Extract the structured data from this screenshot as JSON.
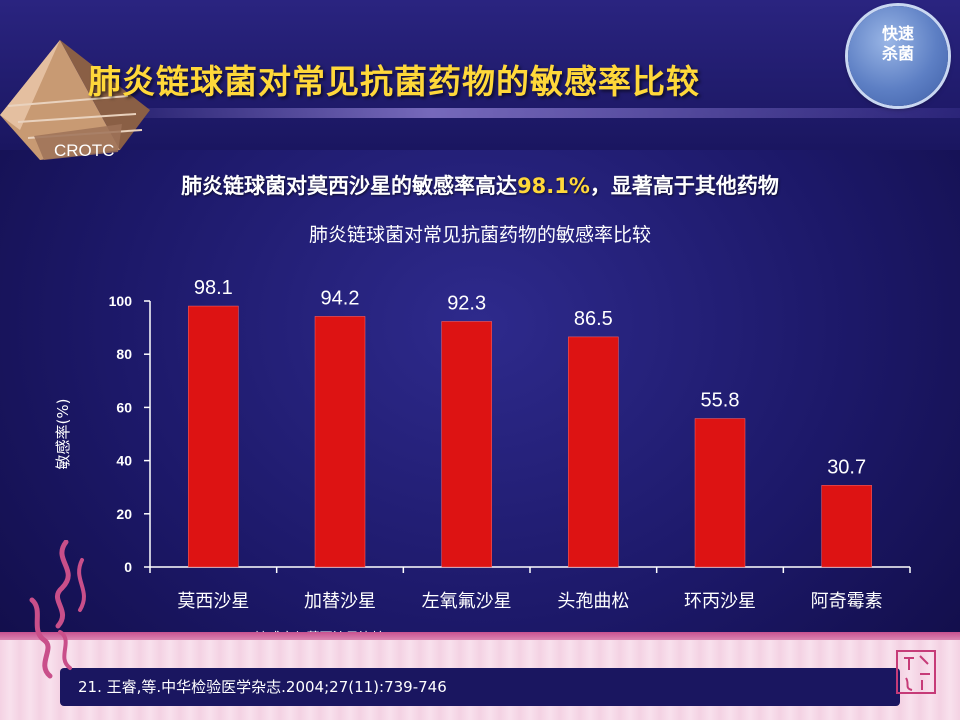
{
  "slide": {
    "title": "肺炎链球菌对常见抗菌药物的敏感率比较",
    "subtitle_prefix": "肺炎链球菌对莫西沙星的敏感率高达",
    "subtitle_highlight": "98.1%",
    "subtitle_suffix": "，显著高于其他药物",
    "badge_line1": "快速",
    "badge_line2": "杀菌",
    "logo_text": "CROTC",
    "footnote": "* 敏感率与莫西沙星比较X² ，P＜0.05",
    "reference": "21. 王睿,等.中华检验医学杂志.2004;27(11):739-746",
    "colors": {
      "title": "#ffd83a",
      "highlight": "#ffd83a",
      "bar": "#dd1313",
      "background": "#1c1868"
    }
  },
  "chart_data": {
    "type": "bar",
    "title": "肺炎链球菌对常见抗菌药物的敏感率比较",
    "xlabel": "",
    "ylabel": "敏感率(%)",
    "categories": [
      "莫西沙星",
      "加替沙星",
      "左氧氟沙星",
      "头孢曲松",
      "环丙沙星",
      "阿奇霉素"
    ],
    "values": [
      98.1,
      94.2,
      92.3,
      86.5,
      55.8,
      30.7
    ],
    "value_labels": [
      "98.1",
      "94.2",
      "92.3",
      "86.5",
      "55.8",
      "30.7"
    ],
    "ylim": [
      0,
      100
    ],
    "yticks": [
      0,
      20,
      40,
      60,
      80,
      100
    ],
    "grid": false,
    "legend": "none"
  }
}
